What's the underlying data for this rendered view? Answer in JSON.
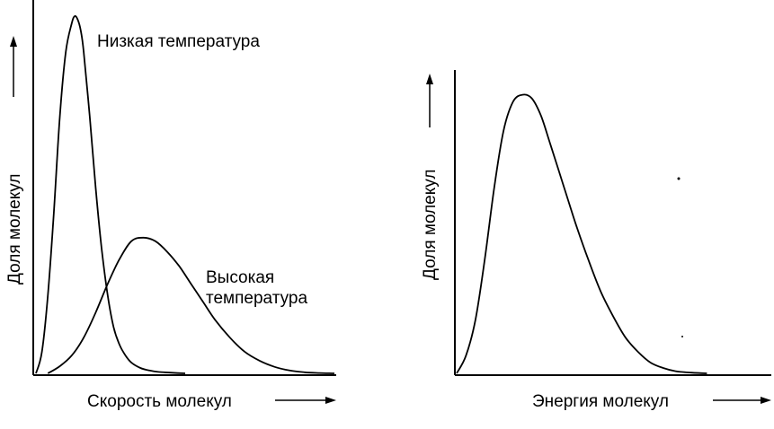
{
  "chart_data": [
    {
      "type": "line",
      "title": "",
      "xlabel": "Скорость молекул",
      "ylabel": "Доля молекул",
      "grid": false,
      "legend": "none",
      "xlim": [
        0,
        10
      ],
      "ylim": [
        0,
        1
      ],
      "series": [
        {
          "name": "Низкая температура",
          "x": [
            0,
            0.2,
            0.4,
            0.6,
            0.8,
            1.0,
            1.2,
            1.3,
            1.4,
            1.5,
            1.6,
            1.8,
            2.0,
            2.2,
            2.4,
            2.6,
            2.8,
            3.0,
            3.2,
            3.5,
            3.8,
            4.1,
            4.5,
            5.0
          ],
          "y": [
            0,
            0.06,
            0.22,
            0.45,
            0.72,
            0.9,
            0.98,
            1.0,
            0.99,
            0.96,
            0.9,
            0.72,
            0.52,
            0.35,
            0.22,
            0.13,
            0.08,
            0.05,
            0.03,
            0.015,
            0.008,
            0.004,
            0.002,
            0
          ]
        },
        {
          "name": "Высокая температура",
          "x": [
            0.4,
            0.8,
            1.2,
            1.6,
            2.0,
            2.4,
            2.8,
            3.2,
            3.6,
            4.0,
            4.4,
            4.8,
            5.2,
            5.6,
            6.0,
            6.5,
            7.0,
            7.5,
            8.0,
            8.5,
            9.0,
            9.5,
            10.0
          ],
          "y": [
            0,
            0.02,
            0.05,
            0.1,
            0.17,
            0.25,
            0.32,
            0.37,
            0.38,
            0.37,
            0.34,
            0.3,
            0.25,
            0.2,
            0.15,
            0.1,
            0.06,
            0.035,
            0.018,
            0.008,
            0.003,
            0.001,
            0
          ]
        }
      ],
      "annotations": [
        "Низкая температура",
        "Высокая",
        "температура"
      ]
    },
    {
      "type": "line",
      "title": "",
      "xlabel": "Энергия молекул",
      "ylabel": "Доля молекул",
      "grid": false,
      "legend": "none",
      "xlim": [
        0,
        10
      ],
      "ylim": [
        0,
        1
      ],
      "series": [
        {
          "name": "",
          "x": [
            0,
            0.3,
            0.6,
            0.9,
            1.2,
            1.5,
            1.8,
            2.1,
            2.4,
            2.7,
            3.0,
            3.4,
            3.8,
            4.2,
            4.6,
            5.0,
            5.4,
            5.8,
            6.2,
            6.6,
            7.0,
            7.5,
            8.0
          ],
          "y": [
            0,
            0.05,
            0.15,
            0.32,
            0.52,
            0.68,
            0.76,
            0.78,
            0.77,
            0.72,
            0.64,
            0.53,
            0.42,
            0.32,
            0.23,
            0.16,
            0.1,
            0.06,
            0.03,
            0.015,
            0.006,
            0.002,
            0
          ]
        }
      ]
    }
  ]
}
